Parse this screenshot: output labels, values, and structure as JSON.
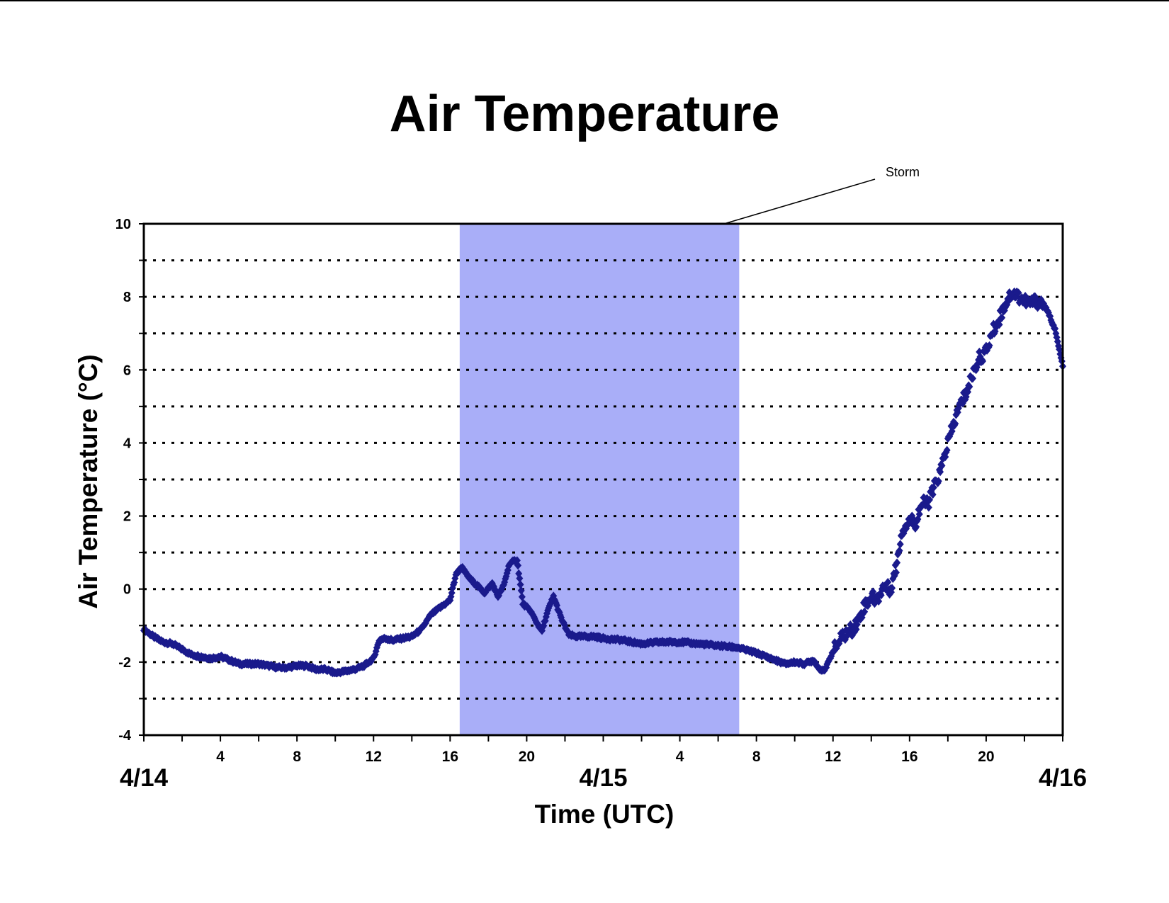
{
  "chart_data": {
    "type": "scatter",
    "title": "Air Temperature",
    "xlabel": "Time (UTC)",
    "ylabel": "Air Temperature (°C)",
    "x_unit": "hours since 4/14 00:00 UTC",
    "xlim": [
      0,
      48
    ],
    "ylim": [
      -4,
      10
    ],
    "yticks": [
      -4,
      -2,
      0,
      2,
      4,
      6,
      8,
      10
    ],
    "y_gridlines": [
      -3,
      -2,
      -1,
      0,
      1,
      2,
      3,
      4,
      5,
      6,
      7,
      8,
      9
    ],
    "grid": "horizontal dotted",
    "x_hour_ticks": [
      {
        "hour": 4,
        "label": "4"
      },
      {
        "hour": 8,
        "label": "8"
      },
      {
        "hour": 12,
        "label": "12"
      },
      {
        "hour": 16,
        "label": "16"
      },
      {
        "hour": 20,
        "label": "20"
      },
      {
        "hour": 28,
        "label": "4"
      },
      {
        "hour": 32,
        "label": "8"
      },
      {
        "hour": 36,
        "label": "12"
      },
      {
        "hour": 40,
        "label": "16"
      },
      {
        "hour": 44,
        "label": "20"
      }
    ],
    "date_labels": [
      {
        "hour": 0,
        "label": "4/14"
      },
      {
        "hour": 24,
        "label": "4/15"
      },
      {
        "hour": 48,
        "label": "4/16"
      }
    ],
    "shaded_region": {
      "label": "Storm",
      "x_start": 16.5,
      "x_end": 31.1,
      "color": "#a9aef8"
    },
    "annotations": [
      {
        "text": "Storm"
      }
    ],
    "marker_color": "#1a1a8c",
    "series": [
      {
        "x": [
          0,
          0.5,
          1,
          1.5,
          2,
          2.5,
          3,
          3.5,
          4,
          4.5,
          5,
          5.5,
          6,
          6.5,
          7,
          7.5,
          8,
          8.5,
          9,
          9.5,
          10,
          10.5,
          11,
          11.5,
          12,
          12.3,
          12.6,
          13,
          13.5,
          14,
          14.5,
          15,
          15.5,
          16,
          16.3,
          16.6,
          17,
          17.5,
          17.8,
          18.2,
          18.5,
          18.8,
          19.1,
          19.5,
          19.8,
          20.2,
          20.5,
          20.8,
          21.1,
          21.4,
          21.8,
          22.2,
          22.6,
          23,
          23.5,
          24,
          25,
          26,
          27,
          28,
          29,
          30,
          31,
          32,
          33,
          33.5,
          34,
          34.5,
          35,
          35.3,
          35.6,
          36,
          36.5,
          37,
          37.3,
          37.6,
          38,
          38.3,
          38.6,
          39,
          39.3,
          39.6,
          40,
          40.3,
          40.6,
          41,
          41.3,
          41.6,
          42,
          42.3,
          42.6,
          43,
          43.3,
          43.6,
          44,
          44.3,
          44.6,
          45,
          45.3,
          45.6,
          46,
          46.3,
          46.6,
          47,
          47.3,
          47.6,
          48
        ],
        "y": [
          -1.1,
          -1.3,
          -1.45,
          -1.5,
          -1.65,
          -1.8,
          -1.85,
          -1.9,
          -1.85,
          -1.95,
          -2.05,
          -2.05,
          -2.05,
          -2.1,
          -2.15,
          -2.15,
          -2.1,
          -2.1,
          -2.2,
          -2.2,
          -2.3,
          -2.25,
          -2.2,
          -2.1,
          -1.9,
          -1.4,
          -1.35,
          -1.4,
          -1.35,
          -1.3,
          -1.1,
          -0.7,
          -0.5,
          -0.3,
          0.4,
          0.6,
          0.3,
          0.05,
          -0.1,
          0.15,
          -0.2,
          0.1,
          0.7,
          0.8,
          -0.4,
          -0.6,
          -0.9,
          -1.15,
          -0.6,
          -0.2,
          -0.8,
          -1.25,
          -1.3,
          -1.3,
          -1.3,
          -1.35,
          -1.4,
          -1.5,
          -1.45,
          -1.45,
          -1.5,
          -1.55,
          -1.6,
          -1.75,
          -1.95,
          -2.05,
          -2.0,
          -2.05,
          -1.95,
          -2.2,
          -2.2,
          -1.7,
          -1.3,
          -1.1,
          -0.9,
          -0.5,
          -0.2,
          -0.3,
          0.05,
          0.0,
          0.6,
          1.6,
          1.9,
          1.8,
          2.3,
          2.4,
          2.8,
          3.2,
          4.0,
          4.5,
          5.0,
          5.4,
          5.9,
          6.3,
          6.5,
          7.0,
          7.3,
          7.8,
          8.1,
          8.05,
          7.9,
          7.8,
          7.9,
          7.8,
          7.5,
          7.1,
          6.1
        ]
      }
    ]
  }
}
